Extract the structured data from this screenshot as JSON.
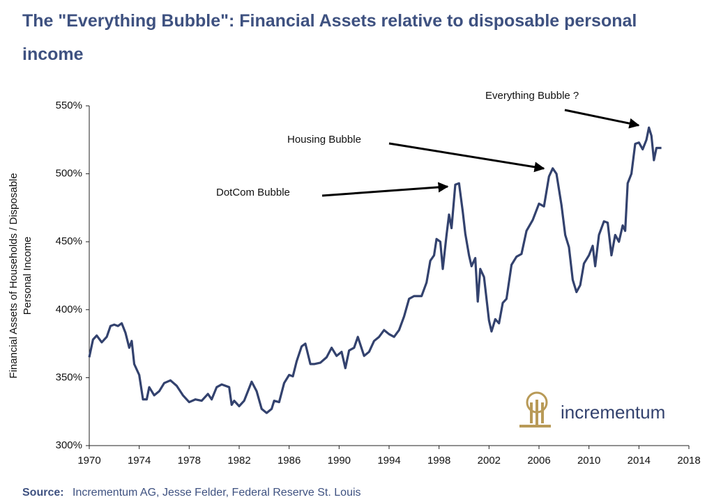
{
  "chart_data": {
    "type": "line",
    "title": "The \"Everything Bubble\": Financial Assets relative to disposable personal income",
    "y_label": [
      "Financial Assets of Households / Disposable",
      "Personal Income"
    ],
    "source_label": "Source:",
    "source": "Incrementum AG, Jesse Felder, Federal Reserve St. Louis",
    "logo": "incrementum",
    "annotations": [
      "DotCom Bubble",
      "Housing Bubble",
      "Everything Bubble ?"
    ],
    "xlim": [
      1970,
      2018
    ],
    "xticks": [
      1970,
      1974,
      1978,
      1982,
      1986,
      1990,
      1994,
      1998,
      2002,
      2006,
      2010,
      2014,
      2018
    ],
    "ylim": [
      300,
      550
    ],
    "yticks": [
      {
        "value": 300,
        "label": "300%"
      },
      {
        "value": 350,
        "label": "350%"
      },
      {
        "value": 400,
        "label": "400%"
      },
      {
        "value": 450,
        "label": "450%"
      },
      {
        "value": 500,
        "label": "500%"
      },
      {
        "value": 550,
        "label": "550%"
      }
    ],
    "grid": false,
    "series": [
      {
        "color": "#33426e",
        "x": [
          1970,
          1970.3,
          1970.6,
          1971,
          1971.4,
          1971.7,
          1972,
          1972.3,
          1972.6,
          1972.9,
          1973.2,
          1973.4,
          1973.6,
          1974,
          1974.3,
          1974.6,
          1974.8,
          1975.2,
          1975.6,
          1976,
          1976.5,
          1977,
          1977.5,
          1978,
          1978.5,
          1979,
          1979.5,
          1979.8,
          1980.2,
          1980.6,
          1981.2,
          1981.4,
          1981.6,
          1982,
          1982.4,
          1983,
          1983.4,
          1983.8,
          1984.2,
          1984.6,
          1984.8,
          1985.2,
          1985.6,
          1986,
          1986.3,
          1986.6,
          1987,
          1987.3,
          1987.7,
          1988,
          1988.5,
          1989,
          1989.4,
          1989.8,
          1990.2,
          1990.5,
          1990.8,
          1991.2,
          1991.5,
          1992,
          1992.4,
          1992.8,
          1993.2,
          1993.6,
          1994,
          1994.4,
          1994.8,
          1995.2,
          1995.6,
          1996,
          1996.6,
          1997,
          1997.3,
          1997.6,
          1997.8,
          1998.1,
          1998.3,
          1998.6,
          1998.8,
          1999,
          1999.3,
          1999.6,
          1999.9,
          2000.1,
          2000.4,
          2000.6,
          2000.9,
          2001.1,
          2001.3,
          2001.6,
          2002,
          2002.2,
          2002.5,
          2002.8,
          2003.1,
          2003.4,
          2003.8,
          2004.2,
          2004.6,
          2005,
          2005.5,
          2006,
          2006.4,
          2006.8,
          2007.1,
          2007.4,
          2007.8,
          2008.1,
          2008.4,
          2008.7,
          2009,
          2009.3,
          2009.6,
          2010,
          2010.3,
          2010.5,
          2010.8,
          2011.2,
          2011.5,
          2011.8,
          2012.1,
          2012.4,
          2012.7,
          2012.9,
          2013.1,
          2013.4,
          2013.7,
          2014,
          2014.3,
          2014.6,
          2014.8,
          2015,
          2015.2,
          2015.4,
          2015.8
        ],
        "values": [
          365,
          378,
          381,
          376,
          380,
          388,
          389,
          388,
          390,
          383,
          372,
          377,
          360,
          352,
          334,
          334,
          343,
          337,
          340,
          346,
          348,
          344,
          337,
          332,
          334,
          333,
          338,
          334,
          343,
          345,
          343,
          330,
          333,
          329,
          333,
          347,
          340,
          327,
          324,
          327,
          333,
          332,
          346,
          352,
          351,
          362,
          373,
          375,
          360,
          360,
          361,
          365,
          372,
          366,
          369,
          357,
          370,
          372,
          380,
          366,
          369,
          377,
          380,
          385,
          382,
          380,
          385,
          395,
          408,
          410,
          410,
          420,
          436,
          440,
          452,
          450,
          430,
          455,
          470,
          460,
          492,
          493,
          472,
          456,
          440,
          432,
          438,
          406,
          430,
          424,
          392,
          384,
          393,
          390,
          405,
          408,
          433,
          439,
          441,
          458,
          466,
          478,
          476,
          498,
          504,
          500,
          477,
          455,
          446,
          422,
          413,
          418,
          434,
          440,
          447,
          432,
          455,
          465,
          464,
          440,
          455,
          450,
          462,
          458,
          493,
          500,
          522,
          523,
          518,
          525,
          534,
          528,
          510,
          519,
          519
        ]
      }
    ]
  }
}
